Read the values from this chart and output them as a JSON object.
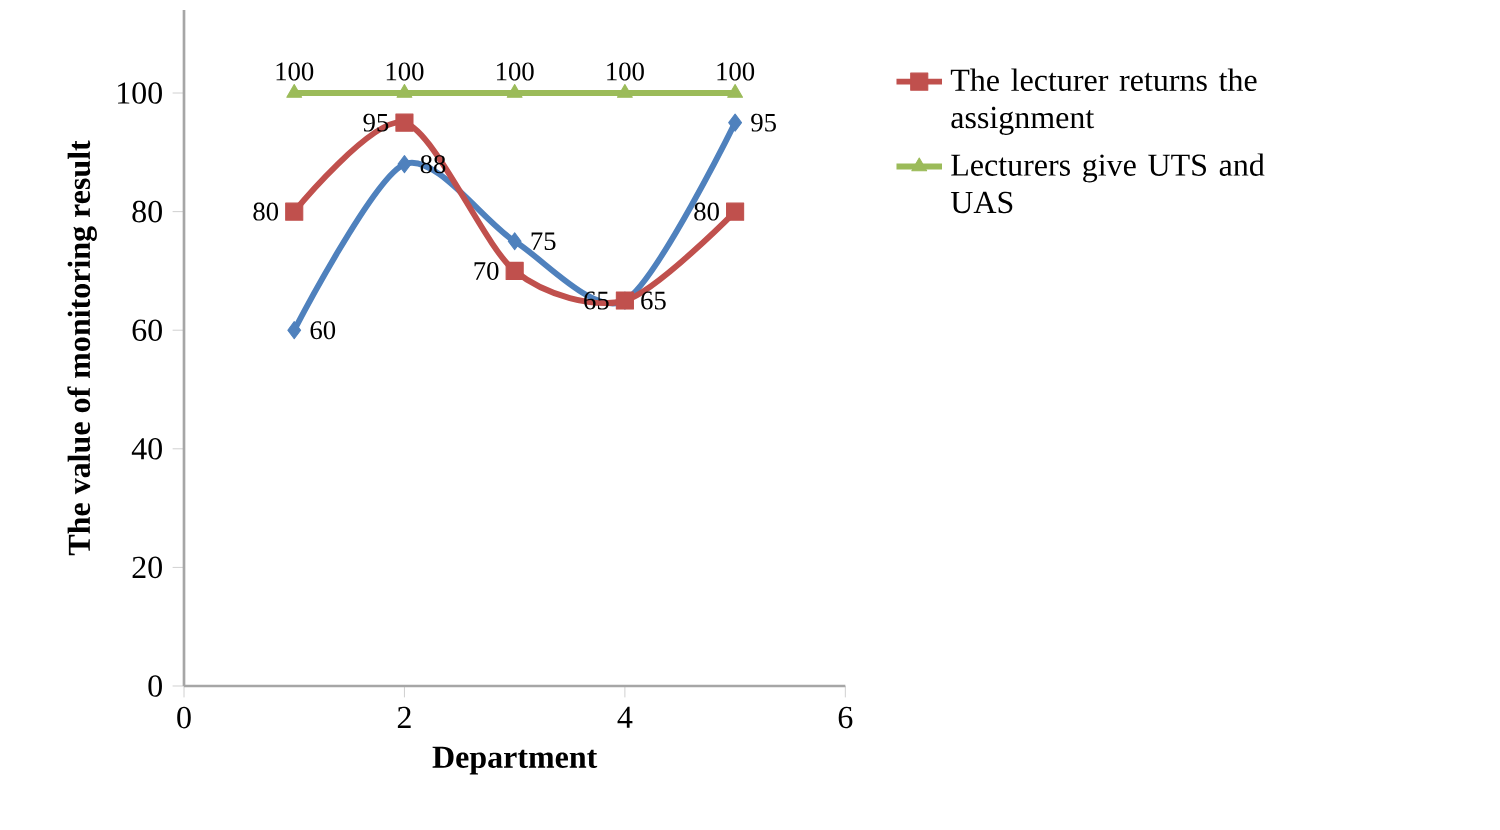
{
  "chart_data": {
    "type": "line",
    "xlabel": "Department",
    "ylabel": "The value of monitoring result",
    "x": [
      1,
      2,
      3,
      4,
      5
    ],
    "series": [
      {
        "color": "#4f81bd",
        "marker": "diamond",
        "values": [
          60,
          88,
          75,
          65,
          95
        ]
      },
      {
        "name": "The lecturer returns the assignment",
        "color": "#c0504d",
        "marker": "square",
        "values": [
          80,
          95,
          70,
          65,
          80
        ]
      },
      {
        "name": "Lecturers give UTS and UAS",
        "color": "#9bbb59",
        "marker": "triangle",
        "values": [
          100,
          100,
          100,
          100,
          100
        ]
      }
    ],
    "xlim": [
      0,
      6
    ],
    "xticks": [
      0,
      2,
      4,
      6
    ],
    "ylim": [
      0,
      114
    ],
    "yticks": [
      0,
      20,
      40,
      60,
      80,
      100
    ],
    "grid": false,
    "legend": "right",
    "data_labels": true
  }
}
